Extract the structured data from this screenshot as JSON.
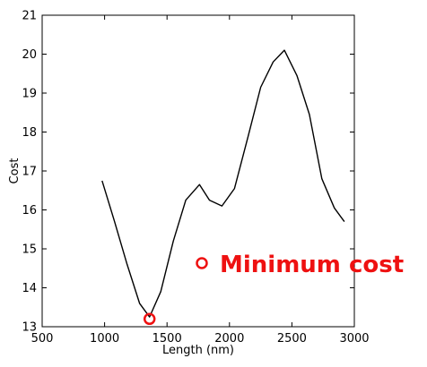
{
  "chart_data": {
    "type": "line",
    "xlabel": "Length (nm)",
    "ylabel": "Cost",
    "xlim": [
      500,
      3000
    ],
    "ylim": [
      13,
      21
    ],
    "xticks": [
      500,
      1000,
      1500,
      2000,
      2500,
      3000
    ],
    "yticks": [
      13,
      14,
      15,
      16,
      17,
      18,
      19,
      20,
      21
    ],
    "grid": false,
    "series": [
      {
        "color": "#000000",
        "x": [
          980,
          1080,
          1180,
          1280,
          1360,
          1450,
          1550,
          1650,
          1760,
          1840,
          1940,
          2040,
          2150,
          2250,
          2350,
          2440,
          2540,
          2640,
          2740,
          2840,
          2920
        ],
        "y": [
          16.75,
          15.7,
          14.6,
          13.6,
          13.25,
          13.9,
          15.2,
          16.25,
          16.65,
          16.25,
          16.1,
          16.55,
          17.9,
          19.15,
          19.8,
          20.1,
          19.45,
          18.45,
          16.8,
          16.05,
          15.7
        ]
      }
    ],
    "minimum_marker": {
      "x": 1360,
      "y": 13.2,
      "color": "#ee1111"
    },
    "legend": {
      "label": "Minimum cost",
      "placement": "right",
      "color": "#ee1111"
    }
  }
}
